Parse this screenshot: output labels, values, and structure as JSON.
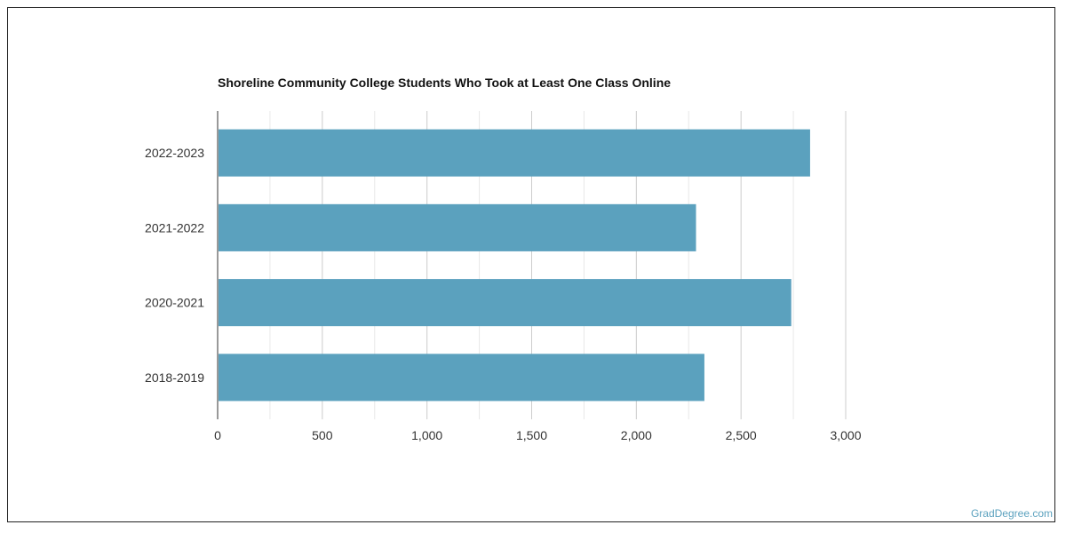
{
  "chart_data": {
    "type": "bar",
    "orientation": "horizontal",
    "title": "Shoreline Community College Students Who Took at Least One Class Online",
    "categories": [
      "2022-2023",
      "2021-2022",
      "2020-2021",
      "2018-2019"
    ],
    "values": [
      2830,
      2285,
      2740,
      2325
    ],
    "xlim": [
      0,
      3000
    ],
    "x_ticks": [
      0,
      500,
      1000,
      1500,
      2000,
      2500,
      3000
    ],
    "x_tick_labels": [
      "0",
      "500",
      "1,000",
      "1,500",
      "2,000",
      "2,500",
      "3,000"
    ],
    "grid": true,
    "bar_color": "#5ba1be"
  },
  "watermark": "GradDegree.com"
}
